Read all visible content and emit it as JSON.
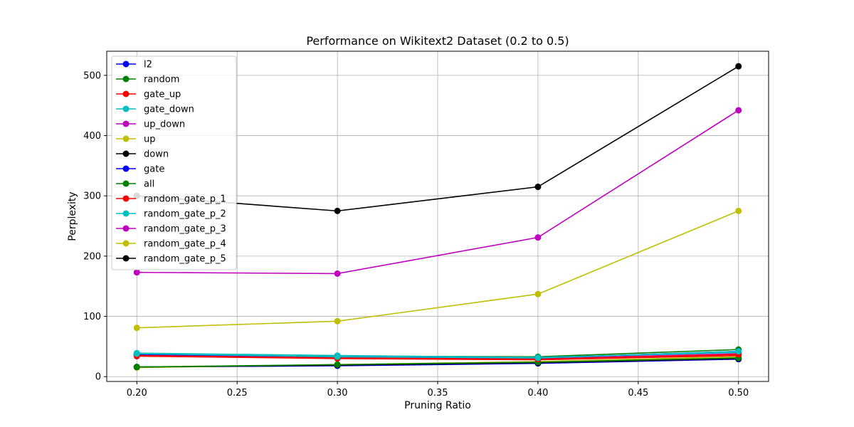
{
  "chart_data": {
    "type": "line",
    "title": "Performance on Wikitext2 Dataset (0.2 to 0.5)",
    "xlabel": "Pruning Ratio",
    "ylabel": "Perplexity",
    "x": [
      0.2,
      0.3,
      0.4,
      0.5
    ],
    "xlim": [
      0.185,
      0.515
    ],
    "ylim": [
      -8,
      540
    ],
    "xticks": [
      0.2,
      0.25,
      0.3,
      0.35,
      0.4,
      0.45,
      0.5
    ],
    "xtick_labels": [
      "0.20",
      "0.25",
      "0.30",
      "0.35",
      "0.40",
      "0.45",
      "0.50"
    ],
    "yticks": [
      0,
      100,
      200,
      300,
      400,
      500
    ],
    "ytick_labels": [
      "0",
      "100",
      "200",
      "300",
      "400",
      "500"
    ],
    "grid": true,
    "legend_position": "top-left",
    "series": [
      {
        "name": "l2",
        "color": "#0000ff",
        "values": [
          16,
          18,
          22,
          29
        ]
      },
      {
        "name": "random",
        "color": "#008000",
        "values": [
          38,
          34,
          33,
          45
        ]
      },
      {
        "name": "gate_up",
        "color": "#ff0000",
        "values": [
          34,
          30,
          28,
          35
        ]
      },
      {
        "name": "gate_down",
        "color": "#00bfbf",
        "values": [
          39,
          35,
          32,
          40
        ]
      },
      {
        "name": "up_down",
        "color": "#bf00bf",
        "values": [
          36,
          32,
          30,
          38
        ]
      },
      {
        "name": "up",
        "color": "#bfbf00",
        "values": [
          15,
          20,
          25,
          33
        ]
      },
      {
        "name": "down",
        "color": "#000000",
        "values": [
          16,
          19,
          23,
          30
        ]
      },
      {
        "name": "gate",
        "color": "#0000ff",
        "values": [
          37,
          33,
          31,
          42
        ]
      },
      {
        "name": "all",
        "color": "#008000",
        "values": [
          16,
          20,
          24,
          31
        ]
      },
      {
        "name": "random_gate_p_1",
        "color": "#ff0000",
        "values": [
          35,
          31,
          29,
          37
        ]
      },
      {
        "name": "random_gate_p_2",
        "color": "#00bfbf",
        "values": [
          38,
          33,
          31,
          42
        ]
      },
      {
        "name": "random_gate_p_3",
        "color": "#bf00bf",
        "values": [
          173,
          171,
          231,
          442
        ]
      },
      {
        "name": "random_gate_p_4",
        "color": "#bfbf00",
        "values": [
          81,
          92,
          137,
          275
        ]
      },
      {
        "name": "random_gate_p_5",
        "color": "#000000",
        "values": [
          300,
          275,
          315,
          515
        ]
      }
    ]
  }
}
